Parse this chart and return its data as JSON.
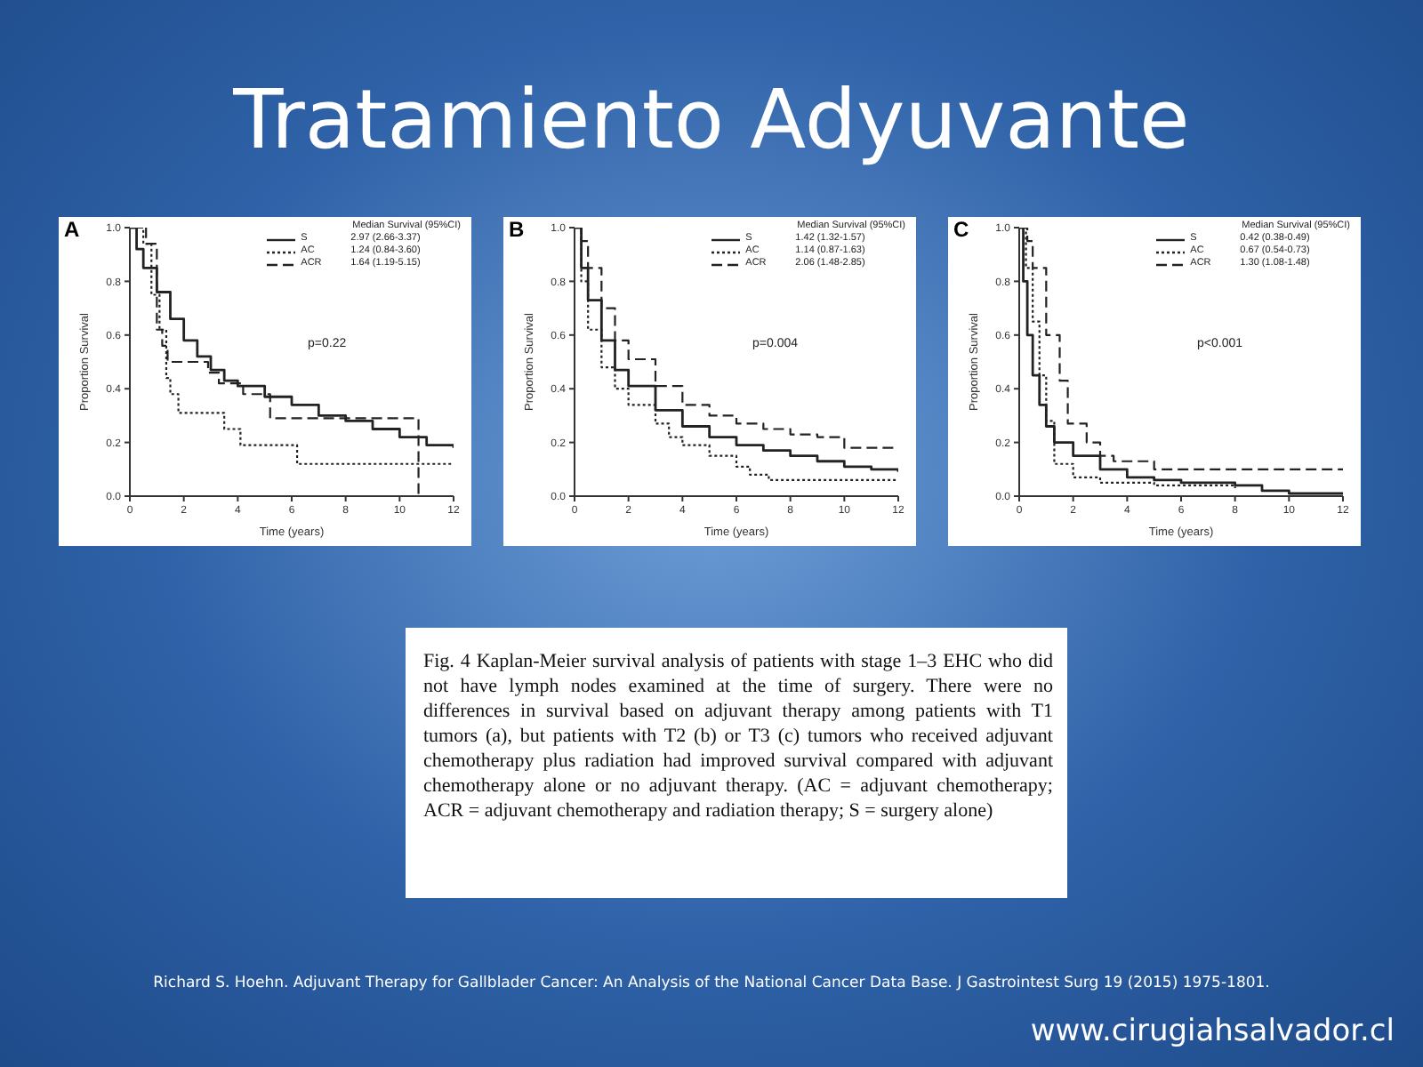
{
  "chart_data": [
    {
      "type": "step",
      "title": "A",
      "xlabel": "Time (years)",
      "ylabel": "Proportion Survival",
      "legend_title": "Median Survival (95%CI)",
      "legend": "top right",
      "marker": "none",
      "annotations": [
        "2.97 (2.66-3.37)",
        "1.24 (0.84-3.60)",
        "1.64 (1.19-5.15)",
        "p=0.22"
      ],
      "xlim": [
        0,
        12
      ],
      "xticks": [
        0,
        2,
        4,
        6,
        8,
        10,
        12
      ],
      "ylim": [
        0,
        1
      ],
      "yticks": [
        {
          "value": 0,
          "label": "0.0"
        },
        {
          "value": 0.2,
          "label": "0.2"
        },
        {
          "value": 0.4,
          "label": "0.4"
        },
        {
          "value": 0.6,
          "label": "0.6"
        },
        {
          "value": 0.8,
          "label": "0.8"
        },
        {
          "value": 1,
          "label": "1.0"
        }
      ],
      "series": [
        {
          "name": "S",
          "color": "#222222",
          "line_style": "solid",
          "x": [
            0,
            0.25,
            0.5,
            1,
            1.5,
            2,
            2.5,
            3,
            3.5,
            4,
            5,
            6,
            7,
            8,
            9,
            10,
            11,
            12
          ],
          "values": [
            1,
            0.92,
            0.85,
            0.76,
            0.66,
            0.58,
            0.52,
            0.47,
            0.43,
            0.41,
            0.37,
            0.34,
            0.3,
            0.28,
            0.25,
            0.22,
            0.19,
            0.18
          ]
        },
        {
          "name": "AC",
          "color": "#222222",
          "line_style": "dotted",
          "x": [
            0,
            0.5,
            0.8,
            1.1,
            1.35,
            1.5,
            1.8,
            3.5,
            4.1,
            6.2,
            12
          ],
          "values": [
            1,
            0.94,
            0.75,
            0.62,
            0.44,
            0.38,
            0.31,
            0.25,
            0.19,
            0.12,
            0.12
          ]
        },
        {
          "name": "ACR",
          "color": "#222222",
          "line_style": "dashed",
          "x": [
            0,
            0.6,
            1,
            1.2,
            1.4,
            2.9,
            3.3,
            4.2,
            5.2,
            10.7
          ],
          "values": [
            1,
            0.94,
            0.62,
            0.56,
            0.5,
            0.46,
            0.42,
            0.38,
            0.29,
            0
          ]
        }
      ]
    },
    {
      "type": "step",
      "title": "B",
      "xlabel": "Time (years)",
      "ylabel": "Proportion Survival",
      "legend_title": "Median Survival (95%CI)",
      "legend": "top right",
      "marker": "none",
      "annotations": [
        "1.42 (1.32-1.57)",
        "1.14 (0.87-1.63)",
        "2.06 (1.48-2.85)",
        "p=0.004"
      ],
      "xlim": [
        0,
        12
      ],
      "xticks": [
        0,
        2,
        4,
        6,
        8,
        10,
        12
      ],
      "ylim": [
        0,
        1
      ],
      "yticks": [
        {
          "value": 0,
          "label": "0.0"
        },
        {
          "value": 0.2,
          "label": "0.2"
        },
        {
          "value": 0.4,
          "label": "0.4"
        },
        {
          "value": 0.6,
          "label": "0.6"
        },
        {
          "value": 0.8,
          "label": "0.8"
        },
        {
          "value": 1,
          "label": "1.0"
        }
      ],
      "series": [
        {
          "name": "S",
          "color": "#222222",
          "line_style": "solid",
          "x": [
            0,
            0.25,
            0.5,
            1,
            1.5,
            2,
            3,
            4,
            5,
            6,
            7,
            8,
            9,
            10,
            11,
            12
          ],
          "values": [
            1,
            0.85,
            0.73,
            0.58,
            0.47,
            0.41,
            0.32,
            0.26,
            0.22,
            0.19,
            0.17,
            0.15,
            0.13,
            0.11,
            0.1,
            0.09
          ]
        },
        {
          "name": "AC",
          "color": "#222222",
          "line_style": "dotted",
          "x": [
            0,
            0.25,
            0.5,
            1,
            1.5,
            2,
            3,
            3.5,
            4,
            5,
            6,
            6.5,
            7.2,
            12
          ],
          "values": [
            1,
            0.8,
            0.62,
            0.48,
            0.4,
            0.34,
            0.27,
            0.22,
            0.19,
            0.15,
            0.11,
            0.08,
            0.06,
            0.06
          ]
        },
        {
          "name": "ACR",
          "color": "#222222",
          "line_style": "dashed",
          "x": [
            0,
            0.25,
            0.5,
            1,
            1.5,
            2,
            3,
            4,
            5,
            6,
            7,
            8,
            9,
            10,
            12
          ],
          "values": [
            1,
            0.95,
            0.85,
            0.7,
            0.58,
            0.51,
            0.41,
            0.34,
            0.3,
            0.27,
            0.25,
            0.23,
            0.22,
            0.18,
            0.18
          ]
        }
      ]
    },
    {
      "type": "step",
      "title": "C",
      "xlabel": "Time (years)",
      "ylabel": "Proportion Survival",
      "legend_title": "Median Survival (95%CI)",
      "legend": "top right",
      "marker": "none",
      "annotations": [
        "0.42 (0.38-0.49)",
        "0.67 (0.54-0.73)",
        "1.30 (1.08-1.48)",
        "p<0.001"
      ],
      "xlim": [
        0,
        12
      ],
      "xticks": [
        0,
        2,
        4,
        6,
        8,
        10,
        12
      ],
      "ylim": [
        0,
        1
      ],
      "yticks": [
        {
          "value": 0,
          "label": "0.0"
        },
        {
          "value": 0.2,
          "label": "0.2"
        },
        {
          "value": 0.4,
          "label": "0.4"
        },
        {
          "value": 0.6,
          "label": "0.6"
        },
        {
          "value": 0.8,
          "label": "0.8"
        },
        {
          "value": 1,
          "label": "1.0"
        }
      ],
      "series": [
        {
          "name": "S",
          "color": "#222222",
          "line_style": "solid",
          "x": [
            0,
            0.15,
            0.3,
            0.5,
            0.75,
            1,
            1.3,
            2,
            3,
            4,
            5,
            6,
            7,
            8,
            9,
            10,
            12
          ],
          "values": [
            1,
            0.8,
            0.6,
            0.45,
            0.34,
            0.26,
            0.2,
            0.15,
            0.1,
            0.07,
            0.06,
            0.05,
            0.05,
            0.04,
            0.02,
            0.01,
            0.01
          ]
        },
        {
          "name": "AC",
          "color": "#222222",
          "line_style": "dotted",
          "x": [
            0,
            0.25,
            0.5,
            0.75,
            1,
            1.3,
            2,
            3,
            5,
            7,
            8
          ],
          "values": [
            1,
            0.85,
            0.65,
            0.45,
            0.28,
            0.12,
            0.07,
            0.05,
            0.04,
            0.04,
            0.03
          ]
        },
        {
          "name": "ACR",
          "color": "#222222",
          "line_style": "dashed",
          "x": [
            0,
            0.3,
            0.5,
            1,
            1.5,
            1.8,
            2.5,
            3,
            3.5,
            5,
            12
          ],
          "values": [
            1,
            0.95,
            0.85,
            0.6,
            0.43,
            0.27,
            0.2,
            0.15,
            0.13,
            0.1,
            0.1
          ]
        }
      ]
    },
    {
      "type": "other",
      "title": "Tratamiento Adyuvante",
      "annotations": [
        "Fig. 4 Kaplan-Meier survival analysis of patients with stage 1–3 EHC who did not have lymph nodes examined at the time of surgery. There were no differences in survival based on adjuvant therapy among patients with T1 tumors (a), but patients with T2 (b) or T3 (c) tumors who received adjuvant chemotherapy plus radiation had improved survival compared with adjuvant chemotherapy alone or no adjuvant therapy. (AC = adjuvant chemotherapy; ACR = adjuvant chemotherapy and radiation therapy; S = surgery alone)",
        "Richard S. Hoehn. Adjuvant Therapy for Gallblader Cancer: An Analysis of the National Cancer Data Base. J Gastrointest Surg 19 (2015)  1975-1801.",
        "www.cirugiahsalvador.cl"
      ]
    }
  ]
}
